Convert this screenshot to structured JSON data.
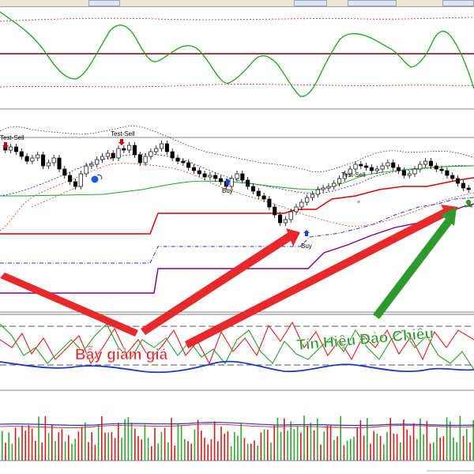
{
  "chart_labels": {
    "test_sell_1": "Test-Sell",
    "test_sell_2": "Test-Sell",
    "test_sell_3": "Test-Sell",
    "buy_1": "Buy",
    "buy_2": "Buy"
  },
  "annotations": {
    "trap": "Bẫy giảm giá",
    "reversal": "Tín Hiệu Đảo Chiều"
  },
  "colors": {
    "oscillator_line": "#1aa31a",
    "level_dark_red": "#7a0000",
    "support_red": "#dd0000",
    "support_purple": "#800080",
    "support_blue_dash": "#3030e0",
    "red_arrow": "#e8292b",
    "green_arrow": "#2e9a2e",
    "volume_up": "#2eaa2e",
    "volume_down": "#dd1a1a"
  },
  "icons": {
    "down_arrow_marker": "arrow-down",
    "up_arrow_marker": "arrow-up",
    "blue_circle_marker": "circle",
    "skull_marker": "skull"
  }
}
